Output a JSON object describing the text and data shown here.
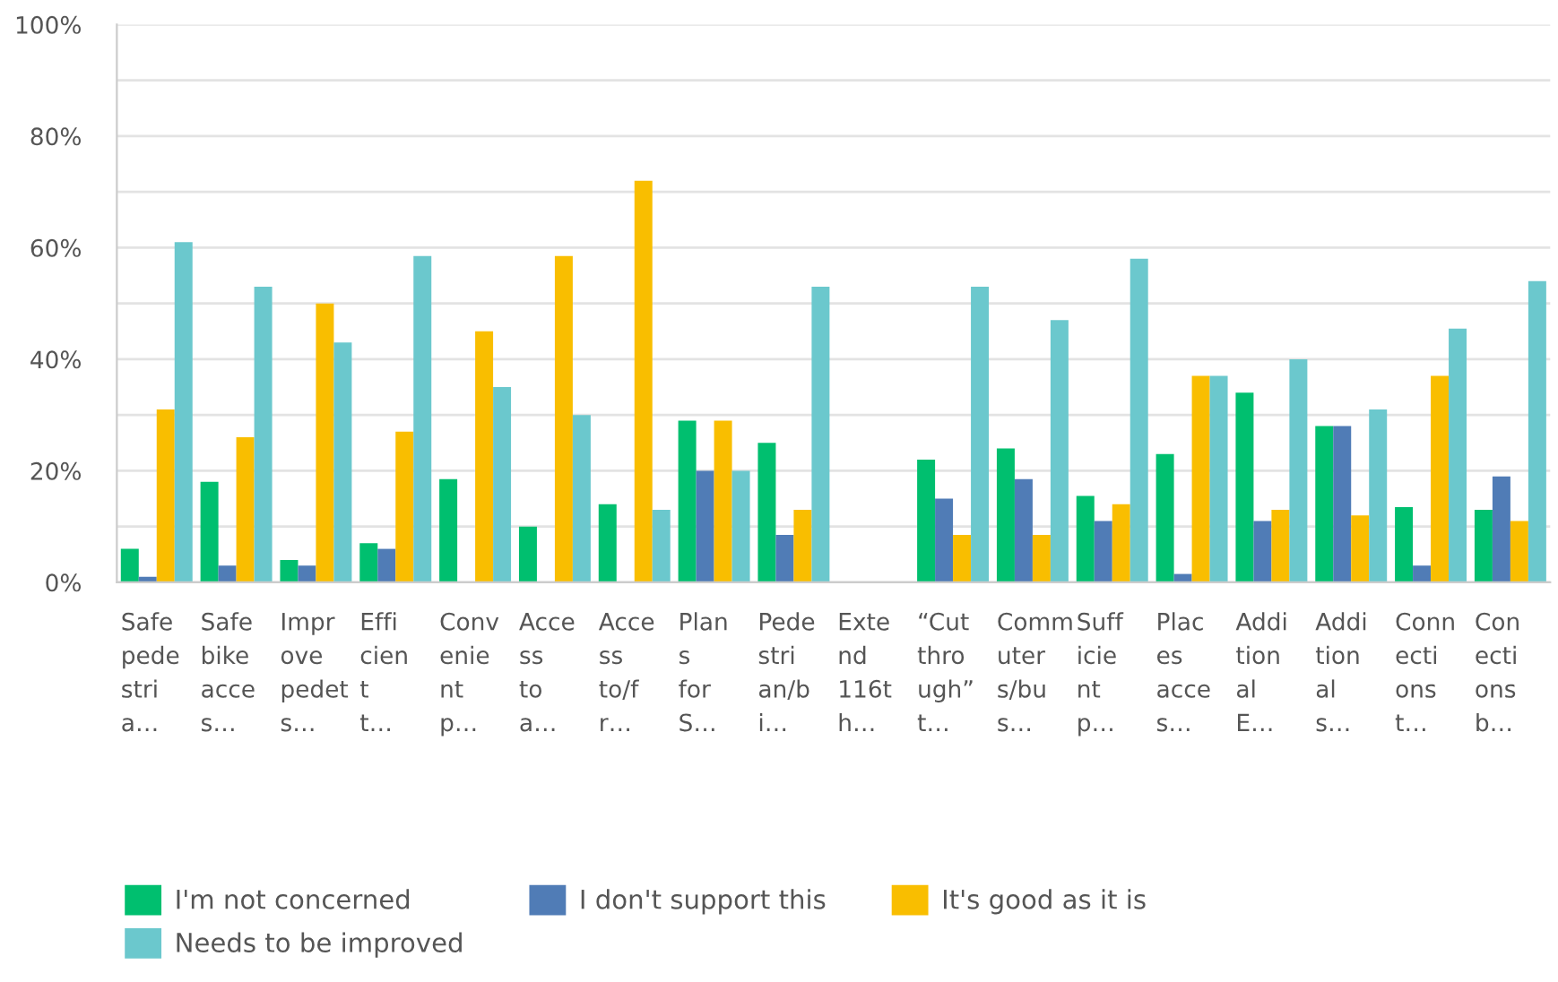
{
  "chart_data": {
    "type": "bar",
    "categories": [
      "Safe\npede\nstri\na…",
      "Safe\nbike\nacce\ns…",
      "Impr\nove\npedet\ns…",
      "Effi\ncien\nt\nt…",
      "Conv\nenie\nnt\np…",
      "Acce\nss\nto\na…",
      "Acce\nss\nto/f\nr…",
      "Plan\ns\nfor\nS…",
      "Pede\nstri\nan/b\ni…",
      "Exte\nnd\n116t\nh…",
      "“Cut\nthro\nugh”\nt…",
      "Comm\nuter\ns/bu\ns…",
      "Suff\nicie\nnt\np…",
      "Plac\nes\nacce\ns…",
      "Addi\ntion\nal\nE…",
      "Addi\ntion\nal\ns…",
      "Conn\necti\nons\nt…",
      "Con\necti\nons\nb…"
    ],
    "series": [
      {
        "name": "I'm not concerned",
        "color": "#00bf6f",
        "values": [
          6,
          18,
          4,
          7,
          18.5,
          10,
          14,
          29,
          25,
          0,
          22,
          24,
          15.5,
          23,
          34,
          28,
          13.5,
          13
        ]
      },
      {
        "name": "I don't support this",
        "color": "#507cb6",
        "values": [
          1,
          3,
          3,
          6,
          0,
          0,
          0,
          20,
          8.5,
          0,
          15,
          18.5,
          11,
          1.5,
          11,
          28,
          3,
          19
        ]
      },
      {
        "name": "It's good as it is",
        "color": "#f9be00",
        "values": [
          31,
          26,
          50,
          27,
          45,
          58.5,
          72,
          29,
          13,
          0,
          8.5,
          8.5,
          14,
          37,
          13,
          12,
          37,
          11
        ]
      },
      {
        "name": "Needs to be improved",
        "color": "#6bc8cd",
        "values": [
          61,
          53,
          43,
          58.5,
          35,
          30,
          13,
          20,
          53,
          0,
          53,
          47,
          58,
          37,
          40,
          31,
          45.5,
          54
        ]
      }
    ],
    "ylim": [
      0,
      100
    ],
    "yticks": [
      {
        "value": 0,
        "label": "0%"
      },
      {
        "value": 10,
        "label": null
      },
      {
        "value": 20,
        "label": "20%"
      },
      {
        "value": 30,
        "label": null
      },
      {
        "value": 40,
        "label": "40%"
      },
      {
        "value": 50,
        "label": null
      },
      {
        "value": 60,
        "label": "60%"
      },
      {
        "value": 70,
        "label": null
      },
      {
        "value": 80,
        "label": "80%"
      },
      {
        "value": 90,
        "label": null
      },
      {
        "value": 100,
        "label": "100%"
      }
    ],
    "grid": "y",
    "legend": "bottom"
  }
}
